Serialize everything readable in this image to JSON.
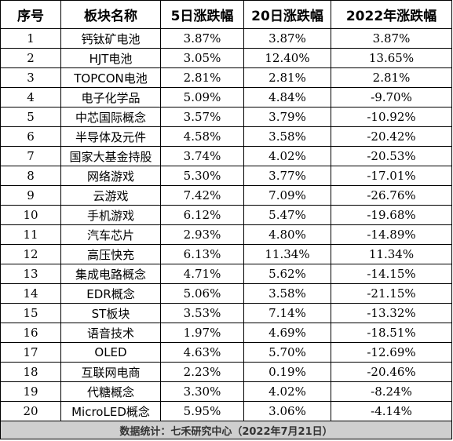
{
  "headers": [
    "序号",
    "板块名称",
    "5日涨跌幅",
    "20日涨跌幅",
    "2022年涨跌幅"
  ],
  "rows": [
    {
      "no": "1",
      "name": "钙钛矿电池",
      "d5": "3.87%",
      "d20": "3.87%",
      "y2022": "3.87%"
    },
    {
      "no": "2",
      "name": "HJT电池",
      "d5": "3.05%",
      "d20": "12.40%",
      "y2022": "13.65%"
    },
    {
      "no": "3",
      "name": "TOPCON电池",
      "d5": "2.81%",
      "d20": "2.81%",
      "y2022": "2.81%"
    },
    {
      "no": "4",
      "name": "电子化学品",
      "d5": "5.09%",
      "d20": "4.84%",
      "y2022": "-9.70%"
    },
    {
      "no": "5",
      "name": "中芯国际概念",
      "d5": "3.57%",
      "d20": "3.79%",
      "y2022": "-10.92%"
    },
    {
      "no": "6",
      "name": "半导体及元件",
      "d5": "4.58%",
      "d20": "3.58%",
      "y2022": "-20.42%"
    },
    {
      "no": "7",
      "name": "国家大基金持股",
      "d5": "3.74%",
      "d20": "4.02%",
      "y2022": "-20.53%"
    },
    {
      "no": "8",
      "name": "网络游戏",
      "d5": "5.30%",
      "d20": "3.77%",
      "y2022": "-17.01%"
    },
    {
      "no": "9",
      "name": "云游戏",
      "d5": "7.42%",
      "d20": "7.09%",
      "y2022": "-26.76%"
    },
    {
      "no": "10",
      "name": "手机游戏",
      "d5": "6.12%",
      "d20": "5.47%",
      "y2022": "-19.68%"
    },
    {
      "no": "11",
      "name": "汽车芯片",
      "d5": "2.93%",
      "d20": "4.80%",
      "y2022": "-14.89%"
    },
    {
      "no": "12",
      "name": "高压快充",
      "d5": "6.13%",
      "d20": "11.34%",
      "y2022": "11.34%"
    },
    {
      "no": "13",
      "name": "集成电路概念",
      "d5": "4.71%",
      "d20": "5.62%",
      "y2022": "-14.15%"
    },
    {
      "no": "14",
      "name": "EDR概念",
      "d5": "5.06%",
      "d20": "3.58%",
      "y2022": "-21.15%"
    },
    {
      "no": "15",
      "name": "ST板块",
      "d5": "3.53%",
      "d20": "7.14%",
      "y2022": "-13.32%"
    },
    {
      "no": "16",
      "name": "语音技术",
      "d5": "1.97%",
      "d20": "4.69%",
      "y2022": "-18.51%"
    },
    {
      "no": "17",
      "name": "OLED",
      "d5": "4.63%",
      "d20": "5.70%",
      "y2022": "-12.69%"
    },
    {
      "no": "18",
      "name": "互联网电商",
      "d5": "2.23%",
      "d20": "0.19%",
      "y2022": "-20.46%"
    },
    {
      "no": "19",
      "name": "代糖概念",
      "d5": "3.30%",
      "d20": "4.02%",
      "y2022": "-8.24%"
    },
    {
      "no": "20",
      "name": "MicroLED概念",
      "d5": "5.95%",
      "d20": "3.06%",
      "y2022": "-4.14%"
    }
  ],
  "footer": "数据统计：七禾研究中心（2022年7月21日）"
}
